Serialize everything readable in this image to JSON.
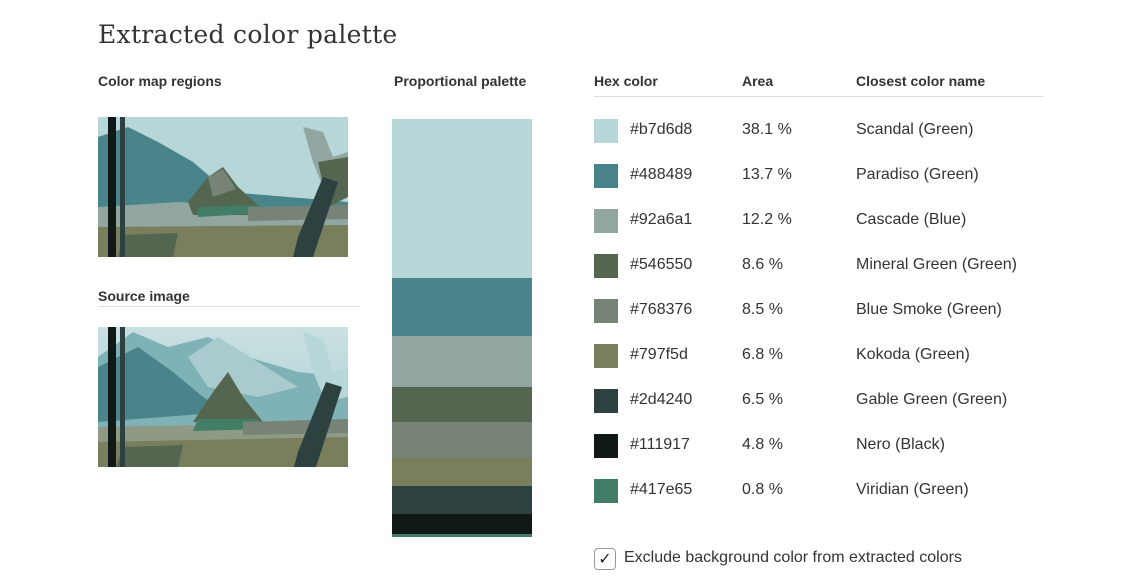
{
  "page": {
    "title": "Extracted color palette"
  },
  "headers": {
    "regions": "Color map regions",
    "source": "Source image",
    "palette": "Proportional palette",
    "hex": "Hex color",
    "area": "Area",
    "name": "Closest color name"
  },
  "colors": [
    {
      "hex": "#b7d6d8",
      "area": "38.1 %",
      "fraction": 0.381,
      "name": "Scandal (Green)"
    },
    {
      "hex": "#488489",
      "area": "13.7 %",
      "fraction": 0.137,
      "name": "Paradiso (Green)"
    },
    {
      "hex": "#92a6a1",
      "area": "12.2 %",
      "fraction": 0.122,
      "name": "Cascade (Blue)"
    },
    {
      "hex": "#546550",
      "area": "8.6 %",
      "fraction": 0.086,
      "name": "Mineral Green (Green)"
    },
    {
      "hex": "#768376",
      "area": "8.5 %",
      "fraction": 0.085,
      "name": "Blue Smoke (Green)"
    },
    {
      "hex": "#797f5d",
      "area": "6.8 %",
      "fraction": 0.068,
      "name": "Kokoda (Green)"
    },
    {
      "hex": "#2d4240",
      "area": "6.5 %",
      "fraction": 0.065,
      "name": "Gable Green (Green)"
    },
    {
      "hex": "#111917",
      "area": "4.8 %",
      "fraction": 0.048,
      "name": "Nero (Black)"
    },
    {
      "hex": "#417e65",
      "area": "0.8 %",
      "fraction": 0.008,
      "name": "Viridian (Green)"
    }
  ],
  "option": {
    "label": "Exclude background color from extracted colors",
    "checked": true,
    "check_glyph": "✓"
  }
}
